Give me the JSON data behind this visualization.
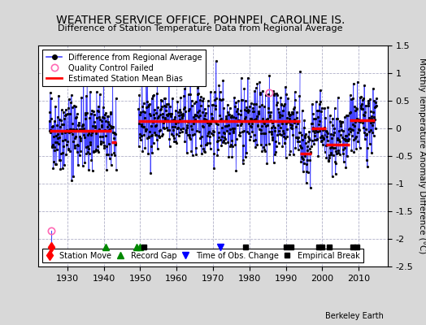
{
  "title": "WEATHER SERVICE OFFICE, POHNPEI, CAROLINE IS.",
  "subtitle": "Difference of Station Temperature Data from Regional Average",
  "ylabel": "Monthly Temperature Anomaly Difference (°C)",
  "xlabel_bottom": "Berkeley Earth",
  "ylim": [
    -2.5,
    1.5
  ],
  "yticks": [
    -2.5,
    -2.0,
    -1.5,
    -1.0,
    -0.5,
    0.0,
    0.5,
    1.0,
    1.5
  ],
  "xlim": [
    1922,
    2018
  ],
  "xticks": [
    1930,
    1940,
    1950,
    1960,
    1970,
    1980,
    1990,
    2000,
    2010
  ],
  "background_color": "#d8d8d8",
  "plot_bg_color": "#ffffff",
  "grid_color": "#b0b0c8",
  "line_color": "#4444ff",
  "dot_color": "#000000",
  "bias_color": "#ff0000",
  "qc_fail_color": "#ff69b4",
  "station_move_color": "#ff0000",
  "record_gap_color": "#008800",
  "obs_change_color": "#0000ff",
  "empirical_break_color": "#000000",
  "segments": [
    {
      "x_start": 1925.0,
      "x_end": 1942.0,
      "bias": -0.05
    },
    {
      "x_start": 1942.0,
      "x_end": 1943.5,
      "bias": -0.25
    },
    {
      "x_start": 1949.5,
      "x_end": 1994.0,
      "bias": 0.13
    },
    {
      "x_start": 1994.0,
      "x_end": 1997.0,
      "bias": -0.45
    },
    {
      "x_start": 1997.0,
      "x_end": 2001.0,
      "bias": 0.0
    },
    {
      "x_start": 2001.0,
      "x_end": 2007.5,
      "bias": -0.3
    },
    {
      "x_start": 2007.5,
      "x_end": 2014.5,
      "bias": 0.15
    }
  ],
  "station_moves": [
    1925.5
  ],
  "record_gaps": [
    1940.5,
    1949.0,
    1950.0
  ],
  "obs_changes": [
    1972.0
  ],
  "empirical_breaks": [
    1951.0,
    1979.0,
    1990.0,
    1991.5,
    1999.0,
    2000.0,
    2002.0,
    2008.5,
    2009.5
  ],
  "qc_fail_points": [
    [
      1925.5,
      -1.85
    ],
    [
      1985.5,
      0.65
    ]
  ]
}
